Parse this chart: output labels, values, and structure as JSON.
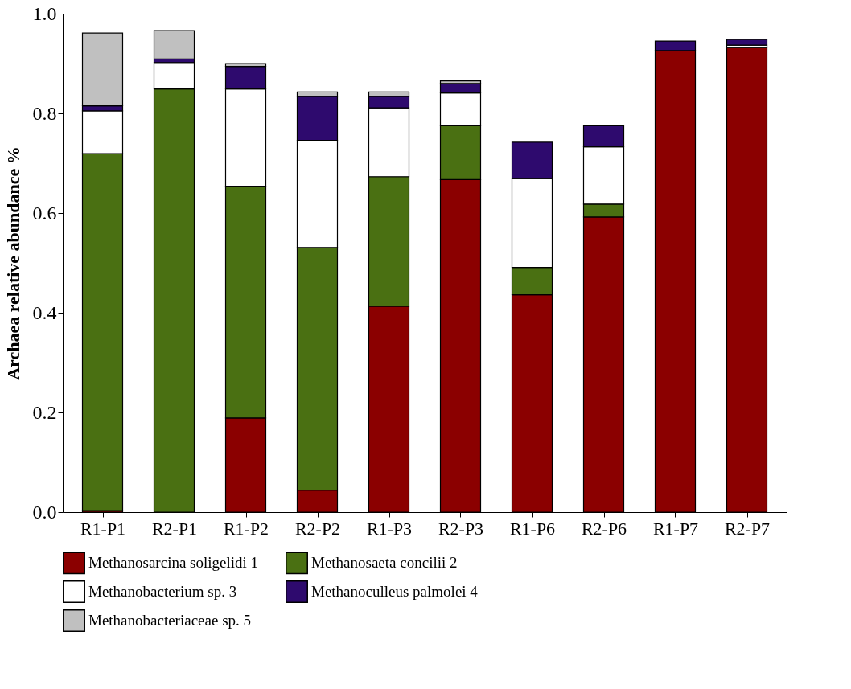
{
  "chart_data": {
    "type": "bar",
    "stacked": true,
    "ylabel": "Archaea relative abundance %",
    "categories": [
      "R1-P1",
      "R2-P1",
      "R1-P2",
      "R2-P2",
      "R1-P3",
      "R2-P3",
      "R1-P6",
      "R2-P6",
      "R1-P7",
      "R2-P7"
    ],
    "series": [
      {
        "name": "Methanosarcina soligelidi 1",
        "color": "#8b0000",
        "values": [
          0.003,
          null,
          0.189,
          0.044,
          0.413,
          0.667,
          0.436,
          0.592,
          0.926,
          0.932
        ]
      },
      {
        "name": "Methanosaeta concilii 2",
        "color": "#4a7012",
        "values": [
          0.716,
          0.849,
          0.465,
          0.487,
          0.26,
          0.108,
          0.055,
          0.026,
          null,
          null
        ]
      },
      {
        "name": "Methanobacterium sp. 3",
        "color": "#ffffff",
        "values": [
          0.086,
          0.053,
          0.195,
          0.215,
          0.138,
          0.066,
          0.178,
          0.115,
          null,
          0.005
        ]
      },
      {
        "name": "Methanoculleus palmolei 4",
        "color": "#2e0a6e",
        "values": [
          0.01,
          0.007,
          0.045,
          0.088,
          0.023,
          0.019,
          0.073,
          0.042,
          0.019,
          0.011
        ]
      },
      {
        "name": "Methanobacteriaceae sp. 5",
        "color": "#c0c0c0",
        "values": [
          0.146,
          0.057,
          0.006,
          0.009,
          0.009,
          0.005,
          null,
          null,
          null,
          null
        ]
      }
    ],
    "ylim": [
      0.0,
      1.0
    ],
    "yticks": [
      {
        "value": 0,
        "label": "0.0"
      },
      0.2,
      0.4,
      0.6,
      0.8,
      {
        "value": 1,
        "label": "1.0"
      }
    ],
    "grid": false,
    "legend": "bottom"
  }
}
